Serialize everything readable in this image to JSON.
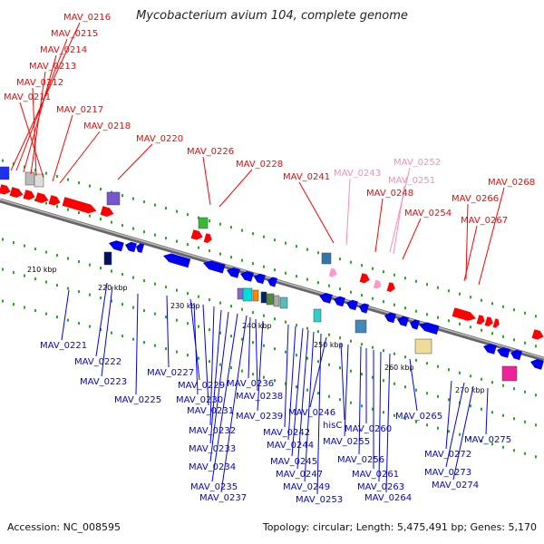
{
  "title": "Mycobacterium avium 104, complete genome",
  "footer": {
    "accession": "Accession: NC_008595",
    "summary": "Topology: circular; Length: 5,475,491 bp; Genes: 5,170"
  },
  "colors": {
    "forward": "#ff0000",
    "reverse": "#0000ee",
    "pseudo": "#ff99cc",
    "backbone": "#888888",
    "tick": "#22aa22"
  },
  "scale_ticks": [
    {
      "label": "210 kbp"
    },
    {
      "label": "220 kbp"
    },
    {
      "label": "230 kbp"
    },
    {
      "label": "240 kbp"
    },
    {
      "label": "250 kbp"
    },
    {
      "label": "260 kbp"
    },
    {
      "label": "270 kbp"
    }
  ],
  "top_labels": [
    {
      "text": "MAV_0216",
      "color": "#ff0000"
    },
    {
      "text": "MAV_0215",
      "color": "#ff0000"
    },
    {
      "text": "MAV_0214",
      "color": "#ff0000"
    },
    {
      "text": "MAV_0213",
      "color": "#ff0000"
    },
    {
      "text": "MAV_0212",
      "color": "#ff0000"
    },
    {
      "text": "MAV_0211",
      "color": "#ff0000"
    },
    {
      "text": "MAV_0217",
      "color": "#ff0000"
    },
    {
      "text": "MAV_0218",
      "color": "#ff0000"
    },
    {
      "text": "MAV_0220",
      "color": "#ff0000"
    },
    {
      "text": "MAV_0226",
      "color": "#ff0000"
    },
    {
      "text": "MAV_0228",
      "color": "#ff0000"
    },
    {
      "text": "MAV_0241",
      "color": "#ff0000"
    },
    {
      "text": "MAV_0243",
      "color": "#ff88bb"
    },
    {
      "text": "MAV_0252",
      "color": "#ff88bb"
    },
    {
      "text": "MAV_0251",
      "color": "#ff88bb"
    },
    {
      "text": "MAV_0248",
      "color": "#ff0000"
    },
    {
      "text": "MAV_0254",
      "color": "#ff0000"
    },
    {
      "text": "MAV_0268",
      "color": "#ff0000"
    },
    {
      "text": "MAV_0266",
      "color": "#ff0000"
    },
    {
      "text": "MAV_0267",
      "color": "#ff0000"
    }
  ],
  "bottom_labels": [
    {
      "text": "MAV_0221"
    },
    {
      "text": "MAV_0222"
    },
    {
      "text": "MAV_0223"
    },
    {
      "text": "MAV_0225"
    },
    {
      "text": "MAV_0227"
    },
    {
      "text": "MAV_0229"
    },
    {
      "text": "MAV_0230"
    },
    {
      "text": "MAV_0231"
    },
    {
      "text": "MAV_0232"
    },
    {
      "text": "MAV_0233"
    },
    {
      "text": "MAV_0234"
    },
    {
      "text": "MAV_0235"
    },
    {
      "text": "MAV_0237"
    },
    {
      "text": "MAV_0236"
    },
    {
      "text": "MAV_0238"
    },
    {
      "text": "MAV_0239"
    },
    {
      "text": "MAV_0242"
    },
    {
      "text": "MAV_0244"
    },
    {
      "text": "MAV_0245"
    },
    {
      "text": "MAV_0247"
    },
    {
      "text": "MAV_0249"
    },
    {
      "text": "MAV_0253"
    },
    {
      "text": "MAV_0246"
    },
    {
      "text": "hisC"
    },
    {
      "text": "MAV_0255"
    },
    {
      "text": "MAV_0256"
    },
    {
      "text": "MAV_0260"
    },
    {
      "text": "MAV_0261"
    },
    {
      "text": "MAV_0263"
    },
    {
      "text": "MAV_0264"
    },
    {
      "text": "MAV_0265"
    },
    {
      "text": "MAV_0272"
    },
    {
      "text": "MAV_0273"
    },
    {
      "text": "MAV_0274"
    },
    {
      "text": "MAV_0275"
    }
  ]
}
